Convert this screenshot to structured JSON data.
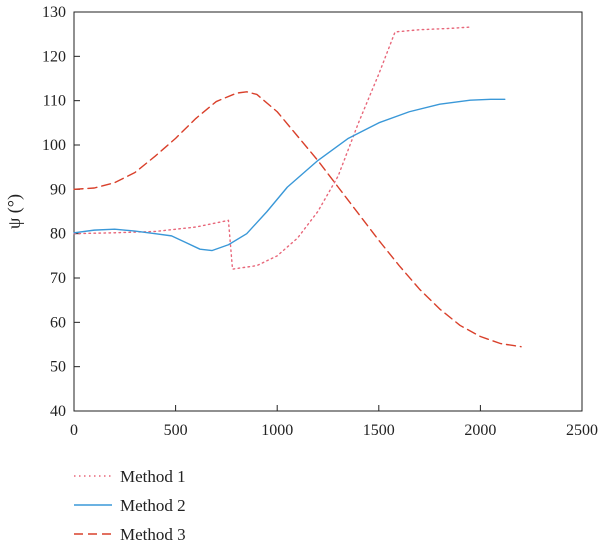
{
  "chart_data": {
    "type": "line",
    "title": "",
    "xlabel": "",
    "ylabel": "ψ (°)",
    "xlim": [
      0,
      2500
    ],
    "ylim": [
      40,
      130
    ],
    "x_ticks": [
      0,
      500,
      1000,
      1500,
      2000,
      2500
    ],
    "y_ticks": [
      40,
      50,
      60,
      70,
      80,
      90,
      100,
      110,
      120,
      130
    ],
    "grid": false,
    "legend_position": "bottom-left, below plot",
    "series": [
      {
        "name": "Method 1",
        "style": "dotted",
        "color": "#e8677a",
        "points": [
          [
            0,
            80
          ],
          [
            200,
            80.2
          ],
          [
            400,
            80.5
          ],
          [
            600,
            81.5
          ],
          [
            760,
            83
          ],
          [
            780,
            72
          ],
          [
            900,
            72.8
          ],
          [
            1000,
            75
          ],
          [
            1100,
            79
          ],
          [
            1200,
            85
          ],
          [
            1300,
            93
          ],
          [
            1400,
            105
          ],
          [
            1500,
            116
          ],
          [
            1580,
            125.5
          ],
          [
            1700,
            126
          ],
          [
            1850,
            126.3
          ],
          [
            1950,
            126.6
          ]
        ]
      },
      {
        "name": "Method 2",
        "style": "solid",
        "color": "#3a98d8",
        "points": [
          [
            0,
            80.2
          ],
          [
            100,
            80.8
          ],
          [
            200,
            81
          ],
          [
            300,
            80.6
          ],
          [
            400,
            80
          ],
          [
            480,
            79.5
          ],
          [
            550,
            78
          ],
          [
            620,
            76.5
          ],
          [
            680,
            76.2
          ],
          [
            760,
            77.5
          ],
          [
            850,
            80
          ],
          [
            950,
            85
          ],
          [
            1050,
            90.5
          ],
          [
            1200,
            96.5
          ],
          [
            1350,
            101.5
          ],
          [
            1500,
            105
          ],
          [
            1650,
            107.5
          ],
          [
            1800,
            109.2
          ],
          [
            1950,
            110.1
          ],
          [
            2050,
            110.3
          ],
          [
            2120,
            110.3
          ]
        ]
      },
      {
        "name": "Method 3",
        "style": "dashed",
        "color": "#d9402b",
        "points": [
          [
            0,
            90
          ],
          [
            100,
            90.3
          ],
          [
            200,
            91.5
          ],
          [
            300,
            93.8
          ],
          [
            400,
            97.5
          ],
          [
            500,
            101.5
          ],
          [
            600,
            106
          ],
          [
            700,
            109.8
          ],
          [
            800,
            111.7
          ],
          [
            850,
            112
          ],
          [
            900,
            111.4
          ],
          [
            1000,
            107.5
          ],
          [
            1100,
            102
          ],
          [
            1200,
            96.5
          ],
          [
            1300,
            90.5
          ],
          [
            1400,
            84.5
          ],
          [
            1500,
            78.5
          ],
          [
            1600,
            72.8
          ],
          [
            1700,
            67.5
          ],
          [
            1800,
            63
          ],
          [
            1900,
            59.3
          ],
          [
            2000,
            56.8
          ],
          [
            2100,
            55.2
          ],
          [
            2200,
            54.5
          ]
        ]
      }
    ]
  }
}
